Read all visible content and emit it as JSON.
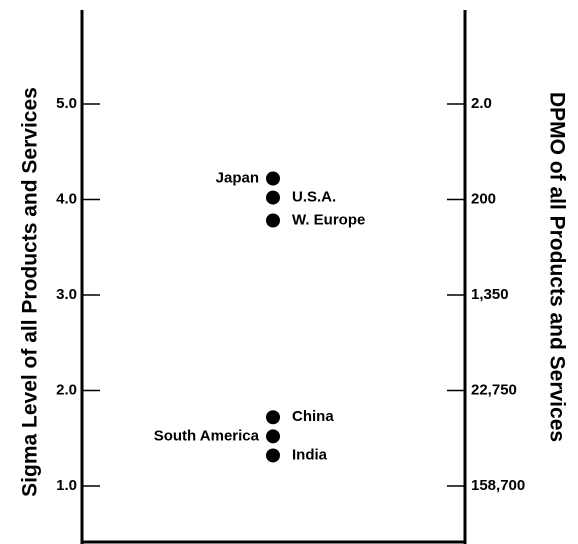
{
  "chart_data": {
    "type": "scatter",
    "left_axis": {
      "label": "Sigma Level of all Products and Services",
      "ticks": [
        {
          "value": 5.0,
          "label": "5.0"
        },
        {
          "value": 4.0,
          "label": "4.0"
        },
        {
          "value": 3.0,
          "label": "3.0"
        },
        {
          "value": 2.0,
          "label": "2.0"
        },
        {
          "value": 1.0,
          "label": "1.0"
        }
      ]
    },
    "right_axis": {
      "label": "DPMO of all Products and Services",
      "ticks": [
        {
          "value": 5.0,
          "label": "2.0"
        },
        {
          "value": 4.0,
          "label": "200"
        },
        {
          "value": 3.0,
          "label": "1,350"
        },
        {
          "value": 2.0,
          "label": "22,750"
        },
        {
          "value": 1.0,
          "label": "158,700"
        }
      ]
    },
    "ylim": [
      0.5,
      6.0
    ],
    "grid": false,
    "points": [
      {
        "label": "Japan",
        "y": 4.22,
        "label_side": "left"
      },
      {
        "label": "U.S.A.",
        "y": 4.02,
        "label_side": "right"
      },
      {
        "label": "W. Europe",
        "y": 3.78,
        "label_side": "right"
      },
      {
        "label": "China",
        "y": 1.72,
        "label_side": "right"
      },
      {
        "label": "South America",
        "y": 1.52,
        "label_side": "left"
      },
      {
        "label": "India",
        "y": 1.32,
        "label_side": "right"
      }
    ]
  }
}
